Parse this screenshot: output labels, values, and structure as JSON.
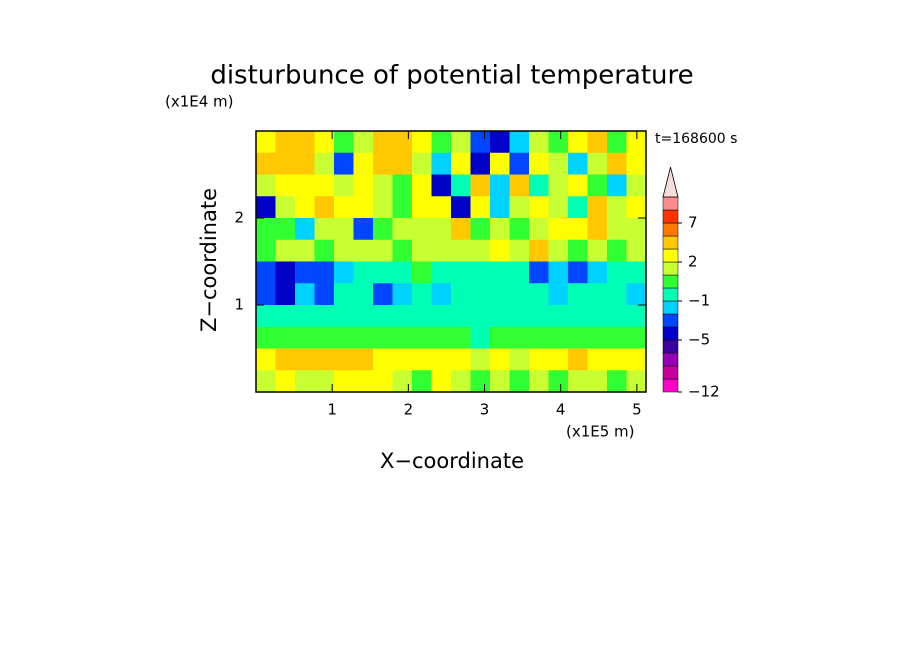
{
  "chart_data": {
    "type": "contour",
    "title": "disturbunce of potential temperature",
    "y_unit": "(x1E4 m)",
    "x_unit": "(x1E5 m)",
    "x_label": "X−coordinate",
    "y_label": "Z−coordinate",
    "annotation": "t=168600 s",
    "xlim": [
      0,
      5.12
    ],
    "ylim": [
      0,
      3.0
    ],
    "xticks": [
      1,
      2,
      3,
      4,
      5
    ],
    "yticks": [
      1,
      2
    ],
    "levels": [
      -12,
      -10,
      -8,
      -6,
      -5,
      -3,
      -2,
      -1,
      0,
      1,
      2,
      3,
      5,
      7,
      9,
      11
    ],
    "colors": [
      "#ff00c8",
      "#c800a0",
      "#9600b4",
      "#3c00a0",
      "#0000c8",
      "#0046ff",
      "#00d2ff",
      "#00ffb4",
      "#32ff32",
      "#c8ff32",
      "#ffff00",
      "#ffc800",
      "#ff7800",
      "#ff3200",
      "#ff8c8c"
    ],
    "extend_color": "#f5dcdc",
    "colorbar_ticks": [
      {
        "value": 7,
        "label": "7"
      },
      {
        "value": 2,
        "label": "2"
      },
      {
        "value": -1,
        "label": "−1"
      },
      {
        "value": -5,
        "label": "−5"
      },
      {
        "value": -12,
        "label": "−12"
      }
    ],
    "field": [
      [
        2,
        3.5,
        4,
        2,
        0,
        1,
        3,
        4,
        2,
        0.5,
        1,
        -3,
        -4,
        -2,
        1,
        0.5,
        2,
        3,
        0.5,
        2
      ],
      [
        3,
        4,
        3,
        1,
        -3,
        2,
        3,
        3,
        1,
        -2,
        2,
        -4,
        2,
        -3,
        2,
        1,
        -2,
        1,
        3,
        2
      ],
      [
        1,
        2.5,
        2,
        2,
        1,
        2.5,
        1,
        0.5,
        2,
        -4,
        -1,
        3,
        -2,
        3,
        -1,
        1.5,
        2,
        0.5,
        -2,
        1
      ],
      [
        -4,
        1,
        2.5,
        3,
        2,
        2.5,
        1,
        0,
        2,
        2,
        -4,
        2,
        -2,
        1.5,
        2.5,
        1,
        -1,
        3,
        1,
        2.5
      ],
      [
        0.5,
        0,
        -2,
        1,
        1.5,
        -3,
        0.5,
        1,
        1,
        1.5,
        3,
        0,
        1.5,
        0,
        1.5,
        2,
        2.5,
        3,
        1.5,
        1
      ],
      [
        0.5,
        1,
        1.5,
        0.5,
        1.5,
        1,
        1,
        0.5,
        1.5,
        1,
        1,
        1.5,
        2,
        1.5,
        3,
        1,
        0.5,
        1,
        0,
        1.5
      ],
      [
        -3,
        -4,
        -3,
        -3,
        -2,
        -1,
        -1,
        -1,
        0,
        -1,
        -1,
        -0.5,
        -1,
        -1,
        -3,
        -2,
        -3,
        -2,
        -1,
        -0.5
      ],
      [
        -3,
        -4,
        -2,
        -3,
        -1,
        -1,
        -3,
        -2,
        -1,
        -2,
        -1,
        -1,
        -1,
        -1,
        -1,
        -2,
        -1,
        -1,
        -1,
        -2
      ],
      [
        -1,
        -1,
        -1,
        -1,
        -0.5,
        -1,
        -1,
        -1,
        -1,
        -1,
        -0.5,
        -1,
        -1,
        -0.5,
        -1,
        -1,
        -0.5,
        -1,
        -1,
        -1
      ],
      [
        0.5,
        0.5,
        0,
        0.5,
        0,
        0,
        0.5,
        0.5,
        0,
        0,
        0.5,
        -0.5,
        0,
        0.5,
        0,
        0,
        0.5,
        0.5,
        0,
        0.5
      ],
      [
        2,
        3,
        3,
        3,
        3.5,
        3,
        2,
        2,
        2,
        2,
        2,
        1,
        2,
        1,
        2,
        2,
        3,
        2,
        2,
        2
      ],
      [
        1.5,
        2,
        1.5,
        1,
        2,
        2,
        2,
        1,
        0.5,
        2,
        1,
        0,
        1,
        0.5,
        1,
        0.5,
        1,
        1.5,
        0.5,
        1
      ]
    ]
  }
}
